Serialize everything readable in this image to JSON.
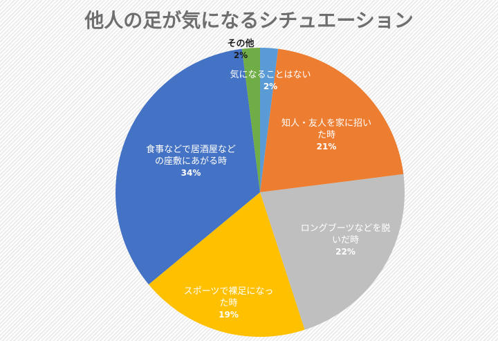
{
  "chart_data": {
    "type": "pie",
    "title": "他人の足が気になるシチュエーション",
    "start_angle_deg": 0,
    "direction": "clockwise",
    "slices": [
      {
        "label": "気になることはない",
        "value": 2,
        "pct_label": "2%",
        "color": "#5b9bd5"
      },
      {
        "label": "知人・友人を家に招いた時",
        "value": 21,
        "pct_label": "21%",
        "color": "#ed7d31"
      },
      {
        "label": "ロングブーツなどを脱いだ時",
        "value": 22,
        "pct_label": "22%",
        "color": "#bfbfbf"
      },
      {
        "label": "スポーツで裸足になった時",
        "value": 19,
        "pct_label": "19%",
        "color": "#ffc000"
      },
      {
        "label": "食事などで居酒屋などの座敷にあがる時",
        "value": 34,
        "pct_label": "34%",
        "color": "#4472c4"
      },
      {
        "label": "その他",
        "value": 2,
        "pct_label": "2%",
        "color": "#70ad47"
      }
    ],
    "legend": "none (data labels on slices)"
  },
  "labels": {
    "s0_line1": "気になることはない",
    "s1_line1": "知人・友人を家に招い",
    "s1_line2": "た時",
    "s2_line1": "ロングブーツなどを脱",
    "s2_line2": "いだ時",
    "s3_line1": "スポーツで裸足になっ",
    "s3_line2": "た時",
    "s4_line1": "食事などで居酒屋など",
    "s4_line2": "の座敷にあがる時",
    "s5_line1": "その他"
  }
}
